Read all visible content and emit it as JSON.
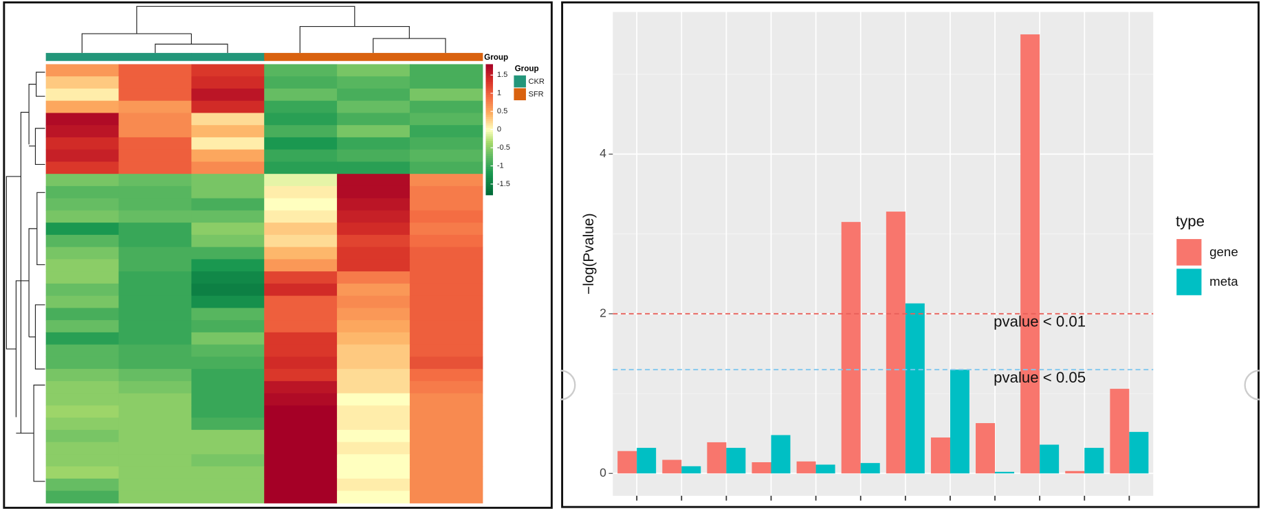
{
  "chart_data": [
    {
      "type": "heatmap",
      "annotation_label": "Group",
      "legend_title": "Group",
      "groups": [
        {
          "name": "CKR",
          "color": "#23967a"
        },
        {
          "name": "SFR",
          "color": "#d9620f"
        }
      ],
      "column_groups": [
        "CKR",
        "CKR",
        "CKR",
        "SFR",
        "SFR",
        "SFR"
      ],
      "colorbar_lim": [
        -1.8,
        1.8
      ],
      "colorbar_ticks": [
        1.5,
        1,
        0.5,
        0,
        -0.5,
        -1,
        -1.5
      ],
      "colorscale": [
        [
          -1.8,
          "#006837"
        ],
        [
          -1.2,
          "#1a9850"
        ],
        [
          -0.7,
          "#66bd63"
        ],
        [
          -0.35,
          "#a6d96a"
        ],
        [
          0,
          "#ffffbf"
        ],
        [
          0.45,
          "#fdae61"
        ],
        [
          0.9,
          "#f46d43"
        ],
        [
          1.35,
          "#d73027"
        ],
        [
          1.8,
          "#a50026"
        ]
      ],
      "values": [
        [
          0.6,
          1.0,
          1.3,
          -0.8,
          -0.6,
          -0.9
        ],
        [
          0.3,
          1.0,
          1.4,
          -0.9,
          -0.8,
          -0.9
        ],
        [
          0.1,
          1.0,
          1.6,
          -0.7,
          -0.9,
          -0.6
        ],
        [
          0.5,
          0.6,
          1.4,
          -1.0,
          -0.7,
          -0.9
        ],
        [
          1.7,
          0.7,
          0.2,
          -1.1,
          -0.9,
          -0.8
        ],
        [
          1.6,
          0.7,
          0.4,
          -0.9,
          -0.6,
          -1.0
        ],
        [
          1.4,
          1.0,
          0.1,
          -1.2,
          -1.0,
          -0.9
        ],
        [
          1.5,
          1.0,
          0.5,
          -1.0,
          -0.9,
          -0.8
        ],
        [
          1.3,
          1.0,
          0.7,
          -1.1,
          -1.1,
          -0.9
        ],
        [
          -0.6,
          -0.7,
          -0.6,
          -0.1,
          1.7,
          0.7
        ],
        [
          -0.8,
          -0.8,
          -0.6,
          0.1,
          1.7,
          0.8
        ],
        [
          -0.7,
          -0.8,
          -0.9,
          0.0,
          1.6,
          0.8
        ],
        [
          -0.6,
          -0.7,
          -0.7,
          0.1,
          1.5,
          0.9
        ],
        [
          -1.2,
          -1.0,
          -0.5,
          0.3,
          1.4,
          0.8
        ],
        [
          -0.8,
          -1.0,
          -0.6,
          0.2,
          1.2,
          0.9
        ],
        [
          -0.6,
          -0.9,
          -0.9,
          0.4,
          1.3,
          1.0
        ],
        [
          -0.5,
          -0.9,
          -1.2,
          0.6,
          1.3,
          1.0
        ],
        [
          -0.5,
          -1.0,
          -1.4,
          1.2,
          0.8,
          1.0
        ],
        [
          -0.7,
          -1.0,
          -1.5,
          1.4,
          0.6,
          1.0
        ],
        [
          -0.6,
          -1.0,
          -1.3,
          1.0,
          0.7,
          1.0
        ],
        [
          -0.9,
          -1.0,
          -0.8,
          1.0,
          0.6,
          1.0
        ],
        [
          -0.7,
          -1.0,
          -0.9,
          1.0,
          0.5,
          1.0
        ],
        [
          -1.1,
          -1.0,
          -0.6,
          1.3,
          0.4,
          1.0
        ],
        [
          -0.8,
          -0.9,
          -0.8,
          1.3,
          0.3,
          1.0
        ],
        [
          -0.8,
          -0.9,
          -0.9,
          1.4,
          0.3,
          1.1
        ],
        [
          -0.6,
          -0.7,
          -1.0,
          1.3,
          0.2,
          0.9
        ],
        [
          -0.5,
          -0.6,
          -1.0,
          1.6,
          0.2,
          0.8
        ],
        [
          -0.5,
          -0.5,
          -1.0,
          1.7,
          0.0,
          0.7
        ],
        [
          -0.4,
          -0.5,
          -1.0,
          1.8,
          0.1,
          0.7
        ],
        [
          -0.5,
          -0.5,
          -0.9,
          1.8,
          0.1,
          0.7
        ],
        [
          -0.6,
          -0.5,
          -0.5,
          1.8,
          0.0,
          0.7
        ],
        [
          -0.5,
          -0.5,
          -0.5,
          1.8,
          0.1,
          0.7
        ],
        [
          -0.5,
          -0.5,
          -0.6,
          1.8,
          0.0,
          0.7
        ],
        [
          -0.4,
          -0.5,
          -0.5,
          1.8,
          0.0,
          0.7
        ],
        [
          -0.7,
          -0.5,
          -0.5,
          1.8,
          0.1,
          0.7
        ],
        [
          -0.9,
          -0.5,
          -0.5,
          1.8,
          0.0,
          0.7
        ]
      ]
    },
    {
      "type": "bar",
      "ylabel": "−log(Pvalue)",
      "categories": [
        null,
        null,
        null,
        null,
        null,
        null,
        null,
        null,
        null,
        null,
        null,
        null
      ],
      "series": [
        {
          "name": "gene",
          "color": "#f8766d",
          "values": [
            0.28,
            0.17,
            0.39,
            0.14,
            0.15,
            3.15,
            3.28,
            0.45,
            0.63,
            5.5,
            0.03,
            1.06
          ]
        },
        {
          "name": "meta",
          "color": "#00bfc4",
          "values": [
            0.32,
            0.09,
            0.32,
            0.48,
            0.11,
            0.13,
            2.13,
            1.3,
            0.02,
            0.36,
            0.32,
            0.52
          ]
        }
      ],
      "ylim": [
        -0.28,
        5.78
      ],
      "yticks": [
        0,
        2,
        4
      ],
      "grid": true,
      "legend_title": "type",
      "hlines": [
        {
          "value": 2,
          "label": "pvalue < 0.01",
          "color": "#e8605a"
        },
        {
          "value": 1.3,
          "label": "pvalue < 0.05",
          "color": "#7fc6ee"
        }
      ]
    }
  ]
}
